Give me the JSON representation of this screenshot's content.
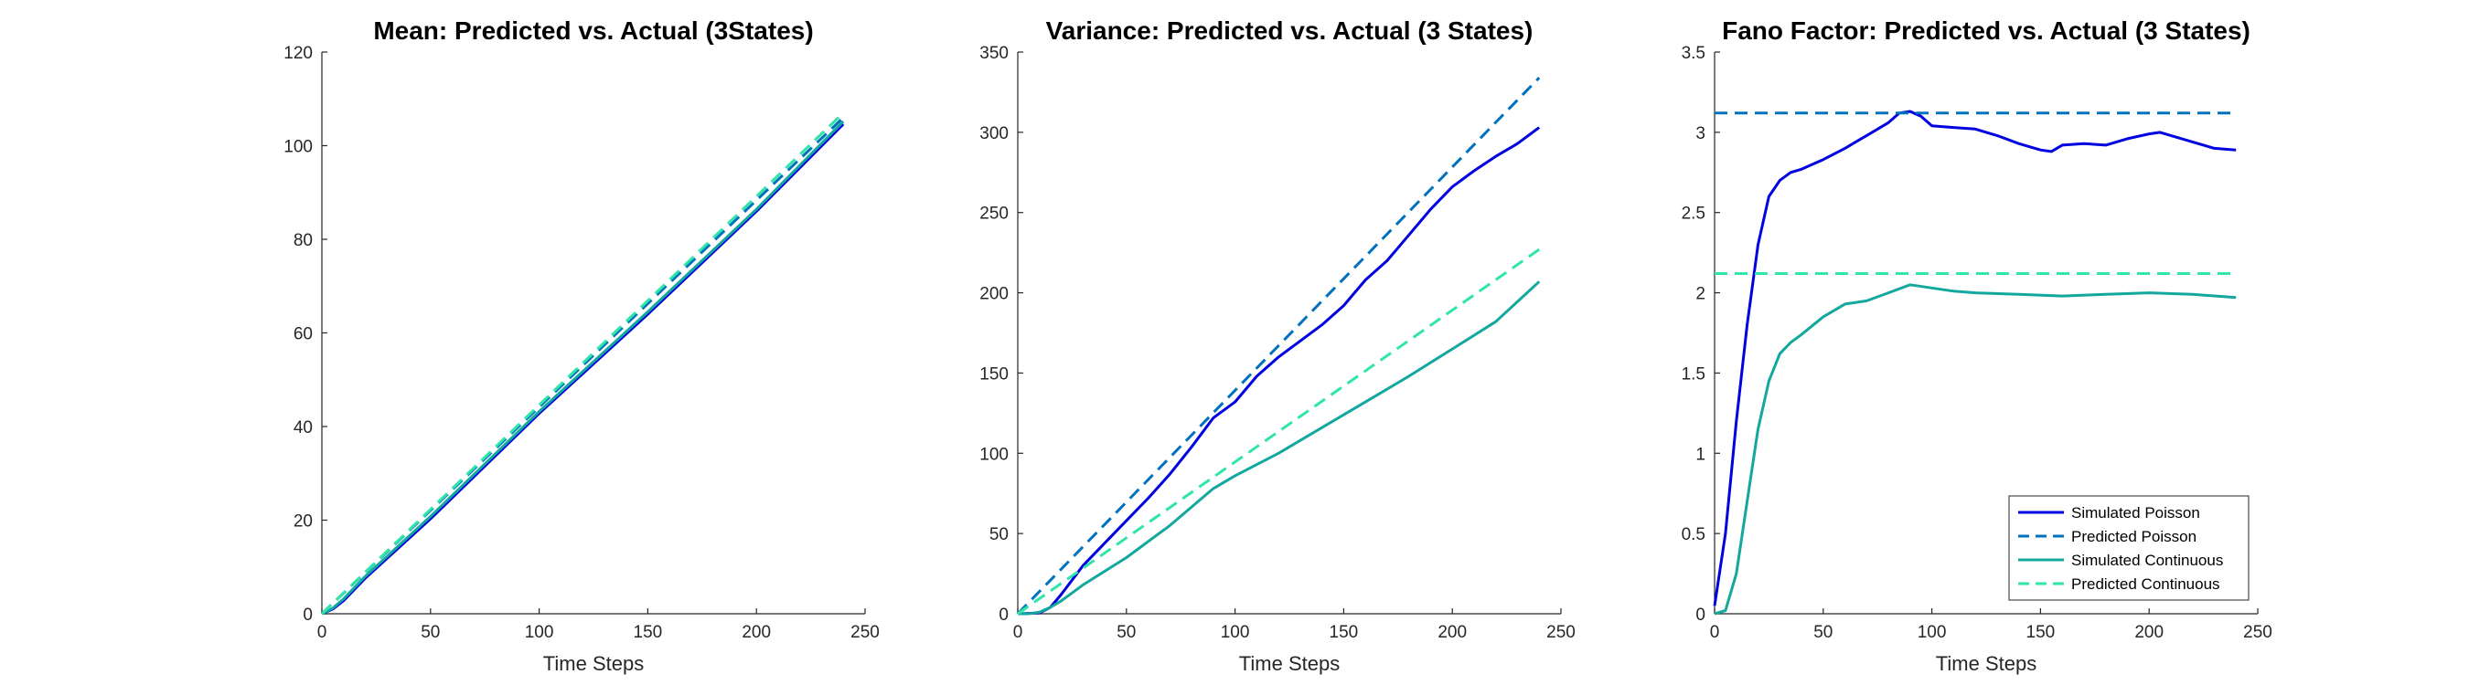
{
  "chart_data": [
    {
      "type": "line",
      "title": "Mean: Predicted vs. Actual (3States)",
      "xlabel": "Time Steps",
      "ylabel": "",
      "xlim": [
        0,
        250
      ],
      "ylim": [
        0,
        120
      ],
      "xticks": [
        0,
        50,
        100,
        150,
        200,
        250
      ],
      "yticks": [
        0,
        20,
        40,
        60,
        80,
        100,
        120
      ],
      "ytick_labels": [
        "0",
        "20",
        "40",
        "60",
        "80",
        "100",
        "120"
      ],
      "series": [
        {
          "color": "#0000e0",
          "style": "solid",
          "x": [
            0,
            5,
            10,
            20,
            50,
            100,
            150,
            200,
            240
          ],
          "y": [
            0,
            1.0,
            2.8,
            7.6,
            20.3,
            42.8,
            64.0,
            86.0,
            104.6
          ]
        },
        {
          "color": "#0072bd",
          "style": "dashed",
          "x": [
            0,
            240
          ],
          "y": [
            0,
            106.0
          ]
        },
        {
          "color": "#13a89e",
          "style": "solid",
          "x": [
            0,
            5,
            10,
            20,
            50,
            100,
            150,
            200,
            240
          ],
          "y": [
            0,
            1.2,
            3.2,
            8.0,
            20.8,
            43.2,
            64.5,
            86.4,
            105.2
          ]
        },
        {
          "color": "#2ee6a8",
          "style": "dashed",
          "x": [
            0,
            240
          ],
          "y": [
            0,
            107.0
          ]
        }
      ]
    },
    {
      "type": "line",
      "title": "Variance: Predicted vs. Actual (3 States)",
      "xlabel": "Time Steps",
      "ylabel": "",
      "xlim": [
        0,
        250
      ],
      "ylim": [
        0,
        350
      ],
      "xticks": [
        0,
        50,
        100,
        150,
        200,
        250
      ],
      "yticks": [
        0,
        50,
        100,
        150,
        200,
        250,
        300,
        350
      ],
      "ytick_labels": [
        "0",
        "50",
        "100",
        "150",
        "200",
        "250",
        "300",
        "350"
      ],
      "series": [
        {
          "color": "#0000e0",
          "style": "solid",
          "x": [
            0,
            10,
            15,
            20,
            30,
            40,
            50,
            60,
            70,
            80,
            90,
            100,
            110,
            120,
            130,
            140,
            150,
            160,
            170,
            180,
            190,
            200,
            210,
            220,
            230,
            240
          ],
          "y": [
            0,
            0.5,
            4,
            12,
            30,
            44,
            58,
            72,
            87,
            104,
            122,
            132,
            148,
            160,
            170,
            180,
            192,
            208,
            220,
            236,
            252,
            266,
            276,
            285,
            293,
            303
          ]
        },
        {
          "color": "#0072bd",
          "style": "dashed",
          "x": [
            0,
            240
          ],
          "y": [
            0,
            334
          ]
        },
        {
          "color": "#13a89e",
          "style": "solid",
          "x": [
            0,
            5,
            10,
            15,
            20,
            30,
            50,
            70,
            90,
            100,
            120,
            140,
            160,
            180,
            200,
            220,
            240
          ],
          "y": [
            0,
            0,
            1,
            4,
            8,
            18,
            35,
            55,
            78,
            86,
            100,
            116,
            132,
            148,
            165,
            182,
            207
          ]
        },
        {
          "color": "#2ee6a8",
          "style": "dashed",
          "x": [
            0,
            240
          ],
          "y": [
            0,
            227
          ]
        }
      ]
    },
    {
      "type": "line",
      "title": "Fano Factor: Predicted vs. Actual (3 States)",
      "xlabel": "Time Steps",
      "ylabel": "",
      "xlim": [
        0,
        250
      ],
      "ylim": [
        0,
        3.5
      ],
      "xticks": [
        0,
        50,
        100,
        150,
        200,
        250
      ],
      "yticks": [
        0,
        0.5,
        1,
        1.5,
        2,
        2.5,
        3,
        3.5
      ],
      "ytick_labels": [
        "0",
        "0.5",
        "1",
        "1.5",
        "2",
        "2.5",
        "3",
        "3.5"
      ],
      "legend": {
        "location": "bottom-right",
        "entries": [
          "Simulated Poisson",
          "Predicted Poisson",
          "Simulated Continuous",
          "Predicted Continuous"
        ]
      },
      "series": [
        {
          "name": "Simulated Poisson",
          "color": "#0000e0",
          "style": "solid",
          "x": [
            0,
            5,
            10,
            15,
            20,
            25,
            30,
            35,
            40,
            50,
            60,
            70,
            80,
            85,
            90,
            95,
            100,
            110,
            120,
            130,
            140,
            150,
            155,
            160,
            170,
            180,
            190,
            200,
            205,
            210,
            220,
            230,
            240
          ],
          "y": [
            0.05,
            0.5,
            1.2,
            1.8,
            2.3,
            2.6,
            2.7,
            2.75,
            2.77,
            2.83,
            2.9,
            2.98,
            3.06,
            3.12,
            3.13,
            3.1,
            3.04,
            3.03,
            3.02,
            2.98,
            2.93,
            2.89,
            2.88,
            2.92,
            2.93,
            2.92,
            2.96,
            2.99,
            3.0,
            2.98,
            2.94,
            2.9,
            2.89
          ]
        },
        {
          "name": "Predicted Poisson",
          "color": "#0072bd",
          "style": "dashed",
          "x": [
            0,
            240
          ],
          "y": [
            3.12,
            3.12
          ]
        },
        {
          "name": "Simulated Continuous",
          "color": "#13a89e",
          "style": "solid",
          "x": [
            0,
            5,
            10,
            15,
            20,
            25,
            30,
            35,
            40,
            50,
            60,
            70,
            80,
            90,
            100,
            110,
            120,
            140,
            160,
            180,
            200,
            220,
            240
          ],
          "y": [
            0,
            0.02,
            0.25,
            0.7,
            1.15,
            1.45,
            1.62,
            1.69,
            1.74,
            1.85,
            1.93,
            1.95,
            2.0,
            2.05,
            2.03,
            2.01,
            2.0,
            1.99,
            1.98,
            1.99,
            2.0,
            1.99,
            1.97
          ]
        },
        {
          "name": "Predicted Continuous",
          "color": "#2ee6a8",
          "style": "dashed",
          "x": [
            0,
            240
          ],
          "y": [
            2.12,
            2.12
          ]
        }
      ]
    }
  ]
}
